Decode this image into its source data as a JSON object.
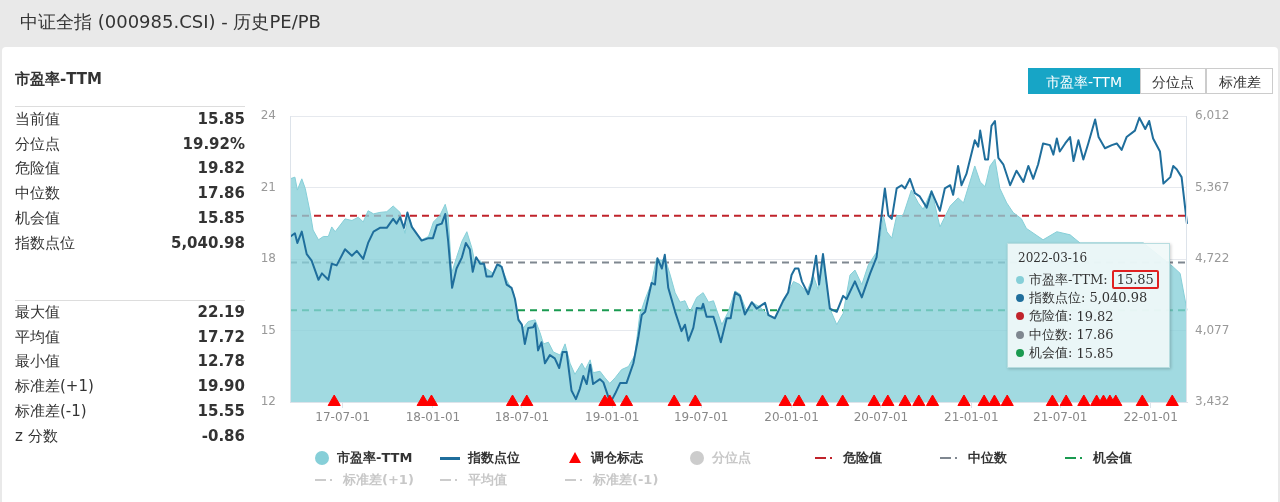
{
  "chart_data": {
    "type": "area",
    "title": "中证全指 (000985.CSI) - 历史PE/PB",
    "xlim": [
      "2017-03-16",
      "2022-03-16"
    ],
    "xticks": [
      {
        "value": "2017-07-01",
        "label": "17-07-01"
      },
      {
        "value": "2018-01-01",
        "label": "18-01-01"
      },
      {
        "value": "2018-07-01",
        "label": "18-07-01"
      },
      {
        "value": "2019-01-01",
        "label": "19-01-01"
      },
      {
        "value": "2019-07-01",
        "label": "19-07-01"
      },
      {
        "value": "2020-01-01",
        "label": "20-01-01"
      },
      {
        "value": "2020-07-01",
        "label": "20-07-01"
      },
      {
        "value": "2021-01-01",
        "label": "21-01-01"
      },
      {
        "value": "2021-07-01",
        "label": "21-07-01"
      },
      {
        "value": "2022-01-01",
        "label": "22-01-01"
      }
    ],
    "ylim": [
      12,
      24
    ],
    "yticks": [
      12,
      15,
      18,
      21,
      24
    ],
    "y2lim": [
      3432,
      6012
    ],
    "y2ticks": [
      {
        "value": 3432,
        "label": "3,432"
      },
      {
        "value": 4077,
        "label": "4,077"
      },
      {
        "value": 4722,
        "label": "4,722"
      },
      {
        "value": 5367,
        "label": "5,367"
      },
      {
        "value": 6012,
        "label": "6,012"
      }
    ],
    "grid": "y",
    "legend": "bottom",
    "series": [
      {
        "name": "市盈率-TTM",
        "color": "#86cfd8",
        "x": [
          "2017-03-16",
          "2017-03-26",
          "2017-03-31",
          "2017-04-09",
          "2017-04-16",
          "2017-04-26",
          "2017-05-02",
          "2017-05-13",
          "2017-05-23",
          "2017-06-02",
          "2017-06-09",
          "2017-06-16",
          "2017-07-06",
          "2017-07-20",
          "2017-08-02",
          "2017-08-12",
          "2017-08-22",
          "2017-09-02",
          "2017-09-15",
          "2017-09-29",
          "2017-10-12",
          "2017-10-26",
          "2017-11-05",
          "2017-11-12",
          "2017-11-22",
          "2017-12-09",
          "2017-12-23",
          "2018-01-02",
          "2018-01-15",
          "2018-01-26",
          "2018-02-01",
          "2018-02-08",
          "2018-02-18",
          "2018-03-01",
          "2018-03-11",
          "2018-03-21",
          "2018-03-28",
          "2018-04-07",
          "2018-04-20",
          "2018-05-04",
          "2018-05-17",
          "2018-05-31",
          "2018-06-14",
          "2018-06-24",
          "2018-07-04",
          "2018-07-14",
          "2018-07-28",
          "2018-08-07",
          "2018-08-14",
          "2018-08-24",
          "2018-09-03",
          "2018-09-17",
          "2018-09-27",
          "2018-10-07",
          "2018-10-17",
          "2018-10-31",
          "2018-11-07",
          "2018-11-17",
          "2018-11-23",
          "2018-12-07",
          "2018-12-17",
          "2018-12-27",
          "2019-01-07",
          "2019-01-20",
          "2019-02-03",
          "2019-02-16",
          "2019-02-26",
          "2019-03-09",
          "2019-03-22",
          "2019-04-01",
          "2019-04-12",
          "2019-04-18",
          "2019-04-29",
          "2019-05-09",
          "2019-05-19",
          "2019-05-29",
          "2019-06-08",
          "2019-06-22",
          "2019-07-05",
          "2019-07-16",
          "2019-07-26",
          "2019-08-12",
          "2019-08-25",
          "2019-09-08",
          "2019-09-18",
          "2019-10-02",
          "2019-10-12",
          "2019-10-29",
          "2019-11-11",
          "2019-11-28",
          "2019-12-19",
          "2020-01-05",
          "2020-01-18",
          "2020-02-01",
          "2020-02-14",
          "2020-02-24",
          "2020-03-05",
          "2020-03-19",
          "2020-04-02",
          "2020-04-15",
          "2020-04-29",
          "2020-05-09",
          "2020-05-23",
          "2020-06-05",
          "2020-06-15",
          "2020-06-26",
          "2020-07-06",
          "2020-07-13",
          "2020-07-23",
          "2020-08-02",
          "2020-08-15",
          "2020-09-01",
          "2020-09-15",
          "2020-09-25",
          "2020-10-12",
          "2020-10-29",
          "2020-11-19",
          "2020-12-05",
          "2020-12-16",
          "2021-01-08",
          "2021-01-19",
          "2021-01-29",
          "2021-02-08",
          "2021-02-18",
          "2021-02-28",
          "2021-03-14",
          "2021-03-27",
          "2021-04-13",
          "2021-04-23",
          "2021-04-30",
          "2021-05-27",
          "2021-06-24",
          "2021-07-21",
          "2021-08-10",
          "2021-08-31",
          "2021-10-04",
          "2021-11-06",
          "2021-12-17",
          "2021-12-31",
          "2022-01-27",
          "2022-02-16",
          "2022-03-02",
          "2022-03-16"
        ],
        "values": [
          21.37,
          21.44,
          20.9,
          21.37,
          20.97,
          19.96,
          19.22,
          18.81,
          18.95,
          18.95,
          19.35,
          19.15,
          19.69,
          19.62,
          19.76,
          19.56,
          20.03,
          19.9,
          19.96,
          19.99,
          20.23,
          19.96,
          19.08,
          19.83,
          19.22,
          18.81,
          18.95,
          19.56,
          19.83,
          20.3,
          19.83,
          17.4,
          18.07,
          18.75,
          19.15,
          18.48,
          17.81,
          17.94,
          17.6,
          17.4,
          17.81,
          17.13,
          16.59,
          15.52,
          15.11,
          15.38,
          15.45,
          14.91,
          14.44,
          14.51,
          14.1,
          13.97,
          14.44,
          13.63,
          13.16,
          13.63,
          13.36,
          13.77,
          13.23,
          13.29,
          13.02,
          12.78,
          13.02,
          13.36,
          13.49,
          13.97,
          15.65,
          16.32,
          17.0,
          18.01,
          17.94,
          18.07,
          17.33,
          16.59,
          16.19,
          16.25,
          15.78,
          16.39,
          16.59,
          16.19,
          16.25,
          15.25,
          15.78,
          16.66,
          16.53,
          15.78,
          16.19,
          15.99,
          15.72,
          15.52,
          16.32,
          17.06,
          16.93,
          16.59,
          17.33,
          16.73,
          17.94,
          15.92,
          15.25,
          15.72,
          17.33,
          17.54,
          16.93,
          17.74,
          18.07,
          18.41,
          19.83,
          19.15,
          18.88,
          19.83,
          19.83,
          20.9,
          20.36,
          20.09,
          20.9,
          19.35,
          20.23,
          20.57,
          20.36,
          21.91,
          21.24,
          21.04,
          21.91,
          22.19,
          20.97,
          20.36,
          19.96,
          19.69,
          19.29,
          null,
          18.81,
          19.15,
          19.02,
          18.68,
          null,
          null,
          null,
          18.68,
          null,
          null,
          17.67,
          17.4,
          15.85
        ]
      },
      {
        "name": "指数点位",
        "type": "line",
        "axis": "y2",
        "color": "#1f6e9c",
        "x": [
          "2017-03-17",
          "2017-03-26",
          "2017-03-31",
          "2017-04-09",
          "2017-04-19",
          "2017-04-29",
          "2017-05-13",
          "2017-05-20",
          "2017-06-02",
          "2017-06-09",
          "2017-06-19",
          "2017-07-06",
          "2017-07-20",
          "2017-07-30",
          "2017-08-12",
          "2017-08-22",
          "2017-09-02",
          "2017-09-15",
          "2017-09-29",
          "2017-10-12",
          "2017-10-19",
          "2017-10-26",
          "2017-11-03",
          "2017-11-10",
          "2017-11-19",
          "2017-12-09",
          "2017-12-23",
          "2018-01-01",
          "2018-01-09",
          "2018-01-19",
          "2018-01-26",
          "2018-02-01",
          "2018-02-09",
          "2018-02-18",
          "2018-03-01",
          "2018-03-09",
          "2018-03-17",
          "2018-03-23",
          "2018-03-30",
          "2018-04-07",
          "2018-04-15",
          "2018-04-20",
          "2018-05-01",
          "2018-05-12",
          "2018-05-21",
          "2018-05-31",
          "2018-06-10",
          "2018-06-17",
          "2018-06-24",
          "2018-07-01",
          "2018-07-07",
          "2018-07-14",
          "2018-07-24",
          "2018-07-28",
          "2018-08-03",
          "2018-08-10",
          "2018-08-17",
          "2018-08-27",
          "2018-09-06",
          "2018-09-15",
          "2018-09-22",
          "2018-09-30",
          "2018-10-10",
          "2018-10-19",
          "2018-10-27",
          "2018-11-03",
          "2018-11-10",
          "2018-11-17",
          "2018-11-23",
          "2018-12-07",
          "2018-12-14",
          "2018-12-24",
          "2018-12-31",
          "2019-01-07",
          "2019-01-17",
          "2019-01-30",
          "2019-02-13",
          "2019-02-23",
          "2019-03-02",
          "2019-03-09",
          "2019-03-22",
          "2019-03-29",
          "2019-04-03",
          "2019-04-12",
          "2019-04-18",
          "2019-04-25",
          "2019-05-09",
          "2019-05-22",
          "2019-05-29",
          "2019-06-05",
          "2019-06-15",
          "2019-06-22",
          "2019-07-02",
          "2019-07-05",
          "2019-07-12",
          "2019-07-26",
          "2019-08-02",
          "2019-08-10",
          "2019-08-22",
          "2019-08-30",
          "2019-09-08",
          "2019-09-18",
          "2019-09-28",
          "2019-10-12",
          "2019-10-22",
          "2019-11-08",
          "2019-11-15",
          "2019-11-28",
          "2019-12-15",
          "2019-12-25",
          "2020-01-01",
          "2020-01-08",
          "2020-01-15",
          "2020-01-22",
          "2020-02-04",
          "2020-02-11",
          "2020-02-20",
          "2020-02-26",
          "2020-03-05",
          "2020-03-19",
          "2020-04-02",
          "2020-04-15",
          "2020-04-22",
          "2020-05-09",
          "2020-05-23",
          "2020-06-09",
          "2020-06-22",
          "2020-07-03",
          "2020-07-09",
          "2020-07-16",
          "2020-07-23",
          "2020-08-02",
          "2020-08-12",
          "2020-08-19",
          "2020-08-29",
          "2020-09-08",
          "2020-09-18",
          "2020-10-02",
          "2020-10-12",
          "2020-10-29",
          "2020-11-08",
          "2020-11-19",
          "2020-11-25",
          "2020-12-05",
          "2020-12-12",
          "2020-12-22",
          "2021-01-08",
          "2021-01-15",
          "2021-01-19",
          "2021-01-29",
          "2021-02-04",
          "2021-02-11",
          "2021-02-18",
          "2021-02-25",
          "2021-03-07",
          "2021-03-21",
          "2021-04-03",
          "2021-04-17",
          "2021-04-27",
          "2021-05-07",
          "2021-05-17",
          "2021-05-27",
          "2021-06-10",
          "2021-06-17",
          "2021-06-24",
          "2021-06-30",
          "2021-07-11",
          "2021-07-21",
          "2021-07-28",
          "2021-08-07",
          "2021-08-17",
          "2021-08-27",
          "2021-09-10",
          "2021-09-17",
          "2021-09-30",
          "2021-10-14",
          "2021-10-24",
          "2021-11-03",
          "2021-11-13",
          "2021-11-30",
          "2021-12-09",
          "2021-12-21",
          "2021-12-29",
          "2022-01-06",
          "2022-01-20",
          "2022-01-27",
          "2022-02-10",
          "2022-02-16",
          "2022-02-23",
          "2022-03-05",
          "2022-03-16"
        ],
        "values": [
          4926,
          4955,
          4868,
          4970,
          4767,
          4709,
          4535,
          4593,
          4535,
          4680,
          4665,
          4811,
          4752,
          4796,
          4724,
          4868,
          4970,
          5004,
          5004,
          5085,
          5042,
          5100,
          5004,
          5143,
          5013,
          4889,
          4911,
          4911,
          5028,
          5042,
          5129,
          4883,
          4463,
          4637,
          4738,
          4868,
          4811,
          4607,
          4738,
          4680,
          4680,
          4564,
          4564,
          4674,
          4651,
          4492,
          4463,
          4362,
          4173,
          4130,
          3956,
          4101,
          4107,
          4142,
          3898,
          3971,
          3782,
          3855,
          3826,
          3739,
          3884,
          3884,
          3536,
          3458,
          3551,
          3667,
          3594,
          3768,
          3594,
          3638,
          3609,
          3478,
          3449,
          3508,
          3603,
          3603,
          3782,
          4014,
          4217,
          4246,
          4507,
          4492,
          4729,
          4637,
          4761,
          4463,
          4246,
          4072,
          4130,
          3985,
          4101,
          4281,
          4275,
          4318,
          4202,
          4202,
          4101,
          3971,
          4188,
          4188,
          4420,
          4390,
          4222,
          4333,
          4275,
          4327,
          4216,
          4188,
          4347,
          4420,
          4579,
          4637,
          4637,
          4521,
          4405,
          4507,
          4752,
          4492,
          4767,
          4275,
          4246,
          4390,
          4362,
          4521,
          4376,
          4593,
          4738,
          5143,
          5360,
          5115,
          5085,
          5360,
          5389,
          5360,
          5447,
          5317,
          5288,
          5187,
          5332,
          5158,
          5360,
          5389,
          5302,
          5563,
          5389,
          5491,
          5795,
          5737,
          5882,
          5621,
          5621,
          5925,
          5969,
          5636,
          5578,
          5389,
          5520,
          5419,
          5563,
          5447,
          5578,
          5766,
          5751,
          5665,
          5810,
          5693,
          5766,
          5824,
          5607,
          5795,
          5621,
          5766,
          5983,
          5824,
          5723,
          5751,
          5766,
          5708,
          5824,
          5882,
          5998,
          5896,
          5969,
          5810,
          5693,
          5404,
          5462,
          5563,
          5534,
          5462,
          5040.98
        ]
      },
      {
        "name": "调仓标志",
        "type": "scatter",
        "marker": "triangle",
        "color": "#ff0000",
        "x": [
          "2017-06-14",
          "2017-12-12",
          "2017-12-29",
          "2018-06-12",
          "2018-07-11",
          "2018-12-17",
          "2018-12-27",
          "2019-01-30",
          "2019-05-07",
          "2019-06-19",
          "2019-12-19",
          "2020-01-16",
          "2020-03-04",
          "2020-04-14",
          "2020-06-17",
          "2020-07-15",
          "2020-08-19",
          "2020-09-16",
          "2020-10-14",
          "2020-12-17",
          "2021-01-27",
          "2021-02-17",
          "2021-03-15",
          "2021-06-15",
          "2021-07-13",
          "2021-08-18",
          "2021-09-13",
          "2021-09-27",
          "2021-10-10",
          "2021-10-22",
          "2021-12-15",
          "2022-02-14"
        ],
        "values": [
          12,
          12,
          12,
          12,
          12,
          12,
          12,
          12,
          12,
          12,
          12,
          12,
          12,
          12,
          12,
          12,
          12,
          12,
          12,
          12,
          12,
          12,
          12,
          12,
          12,
          12,
          12,
          12,
          12,
          12,
          12,
          12
        ]
      }
    ],
    "ref_lines": [
      {
        "axis": "y",
        "value": 19.82,
        "label": "危险值",
        "color": "#c0232b",
        "line_style": "dashed"
      },
      {
        "axis": "y",
        "value": 17.86,
        "label": "中位数",
        "color": "#7f8790",
        "line_style": "dashed"
      },
      {
        "axis": "y",
        "value": 15.85,
        "label": "机会值",
        "color": "#1a9a50",
        "line_style": "dashed"
      }
    ],
    "annotations": [
      "市盈率-TTM",
      "当前值",
      "15.85",
      "分位点",
      "19.92%",
      "危险值",
      "19.82",
      "中位数",
      "17.86",
      "机会值",
      "15.85",
      "指数点位",
      "5,040.98",
      "最大值",
      "22.19",
      "平均值",
      "17.72",
      "最小值",
      "12.78",
      "标准差(+1)",
      "19.90",
      "标准差(-1)",
      "15.55",
      "z 分数",
      "-0.86",
      "市盈率-TTM",
      "分位点",
      "标准差",
      "2022-03-16",
      "市盈率-TTM:",
      "15.85",
      "指数点位:",
      "5,040.98",
      "危险值:",
      "19.82",
      "中位数:",
      "17.86",
      "机会值:",
      "15.85",
      "分位点",
      "标准差(+1)",
      "平均值",
      "标准差(-1)"
    ]
  }
}
